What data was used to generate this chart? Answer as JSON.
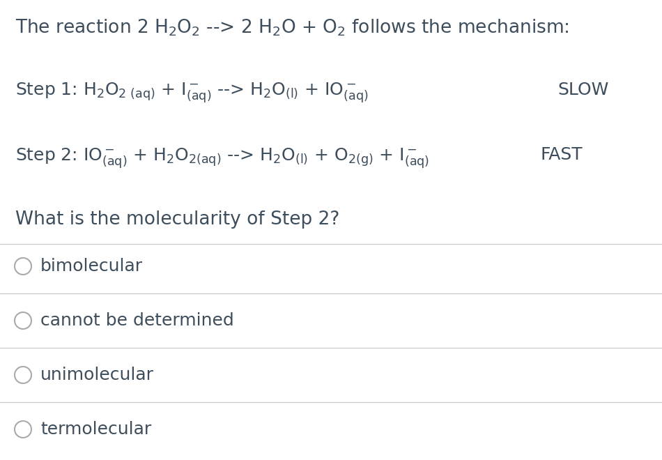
{
  "background_color": "#ffffff",
  "text_color": "#3d4d5c",
  "divider_color": "#cccccc",
  "circle_color": "#aaaaaa",
  "font_size_title": 19,
  "font_size_step": 18,
  "font_size_question": 19,
  "font_size_choice": 18,
  "figsize": [
    9.5,
    6.6
  ],
  "dpi": 100,
  "choices": [
    "bimolecular",
    "cannot be determined",
    "unimolecular",
    "termolecular"
  ]
}
